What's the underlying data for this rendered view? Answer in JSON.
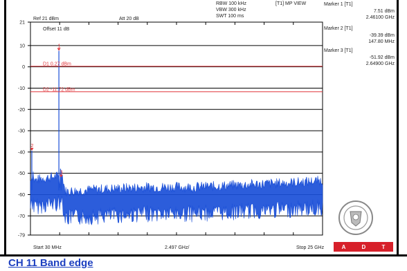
{
  "header": {
    "rbw": "RBW 100 kHz",
    "vbw": "VBW 300 kHz",
    "swt": "SWT 100 ms",
    "trace_mode": "[T1] MP VIEW",
    "ref": "Ref 21 dBm",
    "att": "Att  20 dB",
    "offset": "Offset 11 dB"
  },
  "markers": [
    {
      "label": "Marker 1 [T1]",
      "level": "7.51 dBm",
      "freq": "2.46100 GHz"
    },
    {
      "label": "Marker 2 [T1]",
      "level": "-39.39 dBm",
      "freq": "147.80 MHz"
    },
    {
      "label": "Marker 3 [T1]",
      "level": "-51.92 dBm",
      "freq": "2.64900 GHz"
    }
  ],
  "footer": {
    "start": "Start 30 MHz",
    "center": "2.497 GHz/",
    "stop": "Stop 25 GHz"
  },
  "caption": "CH 11 Band edge",
  "logo_text": [
    "A",
    "D",
    "T"
  ],
  "colors": {
    "trace": "#1a4fd8",
    "limit_line": "#e0353a",
    "marker_label": "#e0353a",
    "grid": "#000000",
    "caption": "#1d3fc0",
    "logo_bar": "#d7202a"
  },
  "chart_data": {
    "type": "line",
    "xlabel": "",
    "ylabel": "",
    "ylim": [
      -79,
      21
    ],
    "xlim": [
      0.03,
      25
    ],
    "x_unit": "GHz",
    "y_unit": "dBm",
    "y_ticks": [
      "21",
      "10",
      "0",
      "-10",
      "-20",
      "-30",
      "-40",
      "-50",
      "-60",
      "-70",
      "-79"
    ],
    "limit_lines": [
      {
        "label": "D1 0.27 dBm",
        "value": 0.27
      },
      {
        "label": "D2 -11.72 dBm",
        "value": -11.72
      }
    ],
    "markers": [
      {
        "id": "1",
        "x": 2.461,
        "y": 7.51
      },
      {
        "id": "2",
        "x": 0.1478,
        "y": -39.39
      },
      {
        "id": "3",
        "x": 2.649,
        "y": -51.92
      }
    ],
    "series": [
      {
        "values": [
          {
            "x": 0.03,
            "y": -58
          },
          {
            "x": 0.1478,
            "y": -39.39
          },
          {
            "x": 0.3,
            "y": -58
          },
          {
            "x": 1.0,
            "y": -57
          },
          {
            "x": 2.2,
            "y": -56
          },
          {
            "x": 2.461,
            "y": 7.51
          },
          {
            "x": 2.55,
            "y": -54
          },
          {
            "x": 2.649,
            "y": -51.92
          },
          {
            "x": 3.0,
            "y": -63
          },
          {
            "x": 6.0,
            "y": -62
          },
          {
            "x": 10.0,
            "y": -61
          },
          {
            "x": 14.0,
            "y": -61
          },
          {
            "x": 18.0,
            "y": -60
          },
          {
            "x": 22.0,
            "y": -59
          },
          {
            "x": 25.0,
            "y": -58
          }
        ]
      }
    ]
  }
}
